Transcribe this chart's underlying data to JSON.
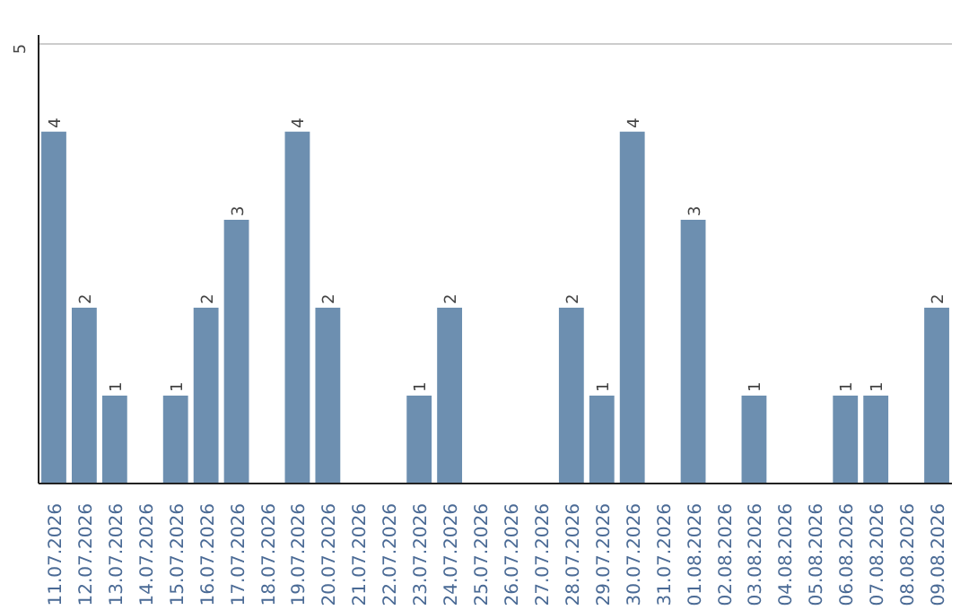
{
  "chart_data": {
    "type": "bar",
    "categories": [
      "11.07.2026",
      "12.07.2026",
      "13.07.2026",
      "14.07.2026",
      "15.07.2026",
      "16.07.2026",
      "17.07.2026",
      "18.07.2026",
      "19.07.2026",
      "20.07.2026",
      "21.07.2026",
      "22.07.2026",
      "23.07.2026",
      "24.07.2026",
      "25.07.2026",
      "26.07.2026",
      "27.07.2026",
      "28.07.2026",
      "29.07.2026",
      "30.07.2026",
      "31.07.2026",
      "01.08.2026",
      "02.08.2026",
      "03.08.2026",
      "04.08.2026",
      "05.08.2026",
      "06.08.2026",
      "07.08.2026",
      "08.08.2026",
      "09.08.2026"
    ],
    "values": [
      4,
      2,
      1,
      0,
      1,
      2,
      3,
      0,
      4,
      2,
      0,
      0,
      1,
      2,
      0,
      0,
      0,
      2,
      1,
      4,
      0,
      3,
      0,
      1,
      0,
      0,
      1,
      1,
      0,
      2
    ],
    "value_labels": [
      "4",
      "2",
      "1",
      null,
      "1",
      "2",
      "3",
      null,
      "4",
      "2",
      null,
      null,
      "1",
      "2",
      null,
      null,
      null,
      "2",
      "1",
      "4",
      null,
      "3",
      null,
      "1",
      null,
      null,
      "1",
      "1",
      null,
      "2"
    ],
    "color": "#6d8fb0",
    "ylim": [
      0,
      5.1
    ],
    "yticks": [
      {
        "value": 0,
        "label": null
      },
      5
    ],
    "grid": "y"
  }
}
